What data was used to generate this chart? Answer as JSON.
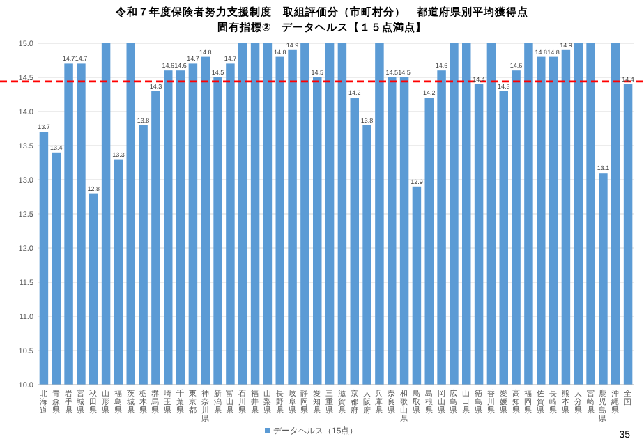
{
  "chart_data": {
    "type": "bar",
    "title": "令和７年度保険者努力支援制度　取組評価分（市町村分）　都道府県別平均獲得点",
    "subtitle": "固有指標②　データヘルス【１５点満点】",
    "categories": [
      "北海道",
      "青森県",
      "岩手県",
      "宮城県",
      "秋田県",
      "山形県",
      "福島県",
      "茨城県",
      "栃木県",
      "群馬県",
      "埼玉県",
      "千葉県",
      "東京都",
      "神奈川県",
      "新潟県",
      "富山県",
      "石川県",
      "福井県",
      "山梨県",
      "長野県",
      "岐阜県",
      "静岡県",
      "愛知県",
      "三重県",
      "滋賀県",
      "京都府",
      "大阪府",
      "兵庫県",
      "奈良県",
      "和歌山県",
      "鳥取県",
      "島根県",
      "岡山県",
      "広島県",
      "山口県",
      "徳島県",
      "香川県",
      "愛媛県",
      "高知県",
      "福岡県",
      "佐賀県",
      "長崎県",
      "熊本県",
      "大分県",
      "宮崎県",
      "鹿児島県",
      "沖縄県",
      "全国"
    ],
    "series": [
      {
        "name": "データヘルス（15点）",
        "color": "#5b9bd5",
        "values": [
          13.7,
          13.4,
          14.7,
          14.7,
          12.8,
          15.0,
          13.3,
          15.0,
          13.8,
          14.3,
          14.6,
          14.6,
          14.7,
          14.8,
          14.5,
          14.7,
          15.0,
          15.0,
          15.0,
          14.8,
          14.9,
          15.0,
          14.5,
          15.0,
          15.0,
          14.2,
          13.8,
          15.0,
          14.5,
          14.5,
          12.9,
          14.2,
          14.6,
          15.0,
          15.0,
          14.4,
          15.0,
          14.3,
          14.6,
          15.0,
          14.8,
          14.8,
          14.9,
          15.0,
          15.0,
          13.1,
          15.0,
          14.4
        ],
        "value_labels": [
          "13.7",
          "13.4",
          "14.7",
          "14.7",
          "12.8",
          null,
          "13.3",
          null,
          "13.8",
          "14.3",
          "14.6",
          "14.6",
          "14.7",
          "14.8",
          "14.5",
          "14.7",
          null,
          null,
          null,
          "14.8",
          "14.9",
          null,
          "14.5",
          null,
          null,
          "14.2",
          "13.8",
          null,
          "14.5",
          "14.5",
          "12.9",
          "14.2",
          "14.6",
          null,
          null,
          "14.4",
          null,
          "14.3",
          "14.6",
          null,
          "14.8",
          "14.8",
          "14.9",
          null,
          null,
          "13.1",
          null,
          "14.4"
        ]
      }
    ],
    "ylim": [
      10,
      15
    ],
    "yticks": [
      {
        "value": 10,
        "label": "10.0"
      },
      {
        "value": 10.5,
        "label": "10.5"
      },
      {
        "value": 11,
        "label": "11.0"
      },
      {
        "value": 11.5,
        "label": "11.5"
      },
      {
        "value": 12,
        "label": "12.0"
      },
      {
        "value": 12.5,
        "label": "12.5"
      },
      {
        "value": 13,
        "label": "13.0"
      },
      {
        "value": 13.5,
        "label": "13.5"
      },
      {
        "value": 14,
        "label": "14.0"
      },
      {
        "value": 14.5,
        "label": "14.5"
      },
      {
        "value": 15,
        "label": "15.0"
      }
    ],
    "grid": "y",
    "legend": "bottom",
    "ref_lines": [
      {
        "axis": "y",
        "value": 14.44,
        "color": "#ff0000",
        "line_style": "dashed"
      }
    ],
    "annotations": [
      "35"
    ]
  }
}
